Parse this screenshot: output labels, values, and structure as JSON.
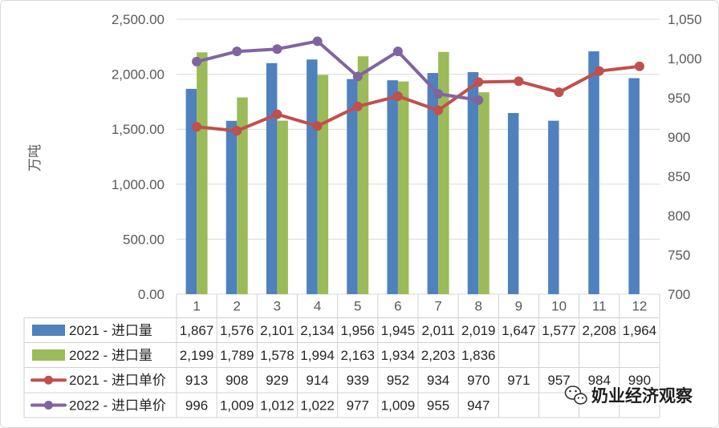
{
  "chart_data": {
    "type": "bar",
    "categories": [
      "1",
      "2",
      "3",
      "4",
      "5",
      "6",
      "7",
      "8",
      "9",
      "10",
      "11",
      "12"
    ],
    "series": [
      {
        "name": "2021 - 进口量",
        "type": "bar",
        "axis": "left",
        "color": "#4F81BD",
        "values": [
          1867,
          1576,
          2101,
          2134,
          1956,
          1945,
          2011,
          2019,
          1647,
          1577,
          2208,
          1964
        ]
      },
      {
        "name": "2022 - 进口量",
        "type": "bar",
        "axis": "left",
        "color": "#9BBB59",
        "values": [
          2199,
          1789,
          1578,
          1994,
          2163,
          1934,
          2203,
          1836,
          null,
          null,
          null,
          null
        ]
      },
      {
        "name": "2021 - 进口单价",
        "type": "line",
        "axis": "right",
        "color": "#C0504D",
        "values": [
          913,
          908,
          929,
          914,
          939,
          952,
          934,
          970,
          971,
          957,
          984,
          990
        ]
      },
      {
        "name": "2022 - 进口单价",
        "type": "line",
        "axis": "right",
        "color": "#8064A2",
        "values": [
          996,
          1009,
          1012,
          1022,
          977,
          1009,
          955,
          947,
          null,
          null,
          null,
          null
        ]
      }
    ],
    "ylabel": "万吨",
    "ylim": [
      0,
      2500
    ],
    "y2lim": [
      700,
      1050
    ],
    "y_tick_labels": [
      "0.00",
      "500.00",
      "1,000.00",
      "1,500.00",
      "2,000.00",
      "2,500.00"
    ],
    "y2_tick_labels": [
      "700",
      "750",
      "800",
      "850",
      "900",
      "950",
      "1,000",
      "1,050"
    ],
    "grid": true,
    "legend": "data-table"
  },
  "watermark": {
    "text": "奶业经济观察",
    "icon": "wechat-icon"
  }
}
